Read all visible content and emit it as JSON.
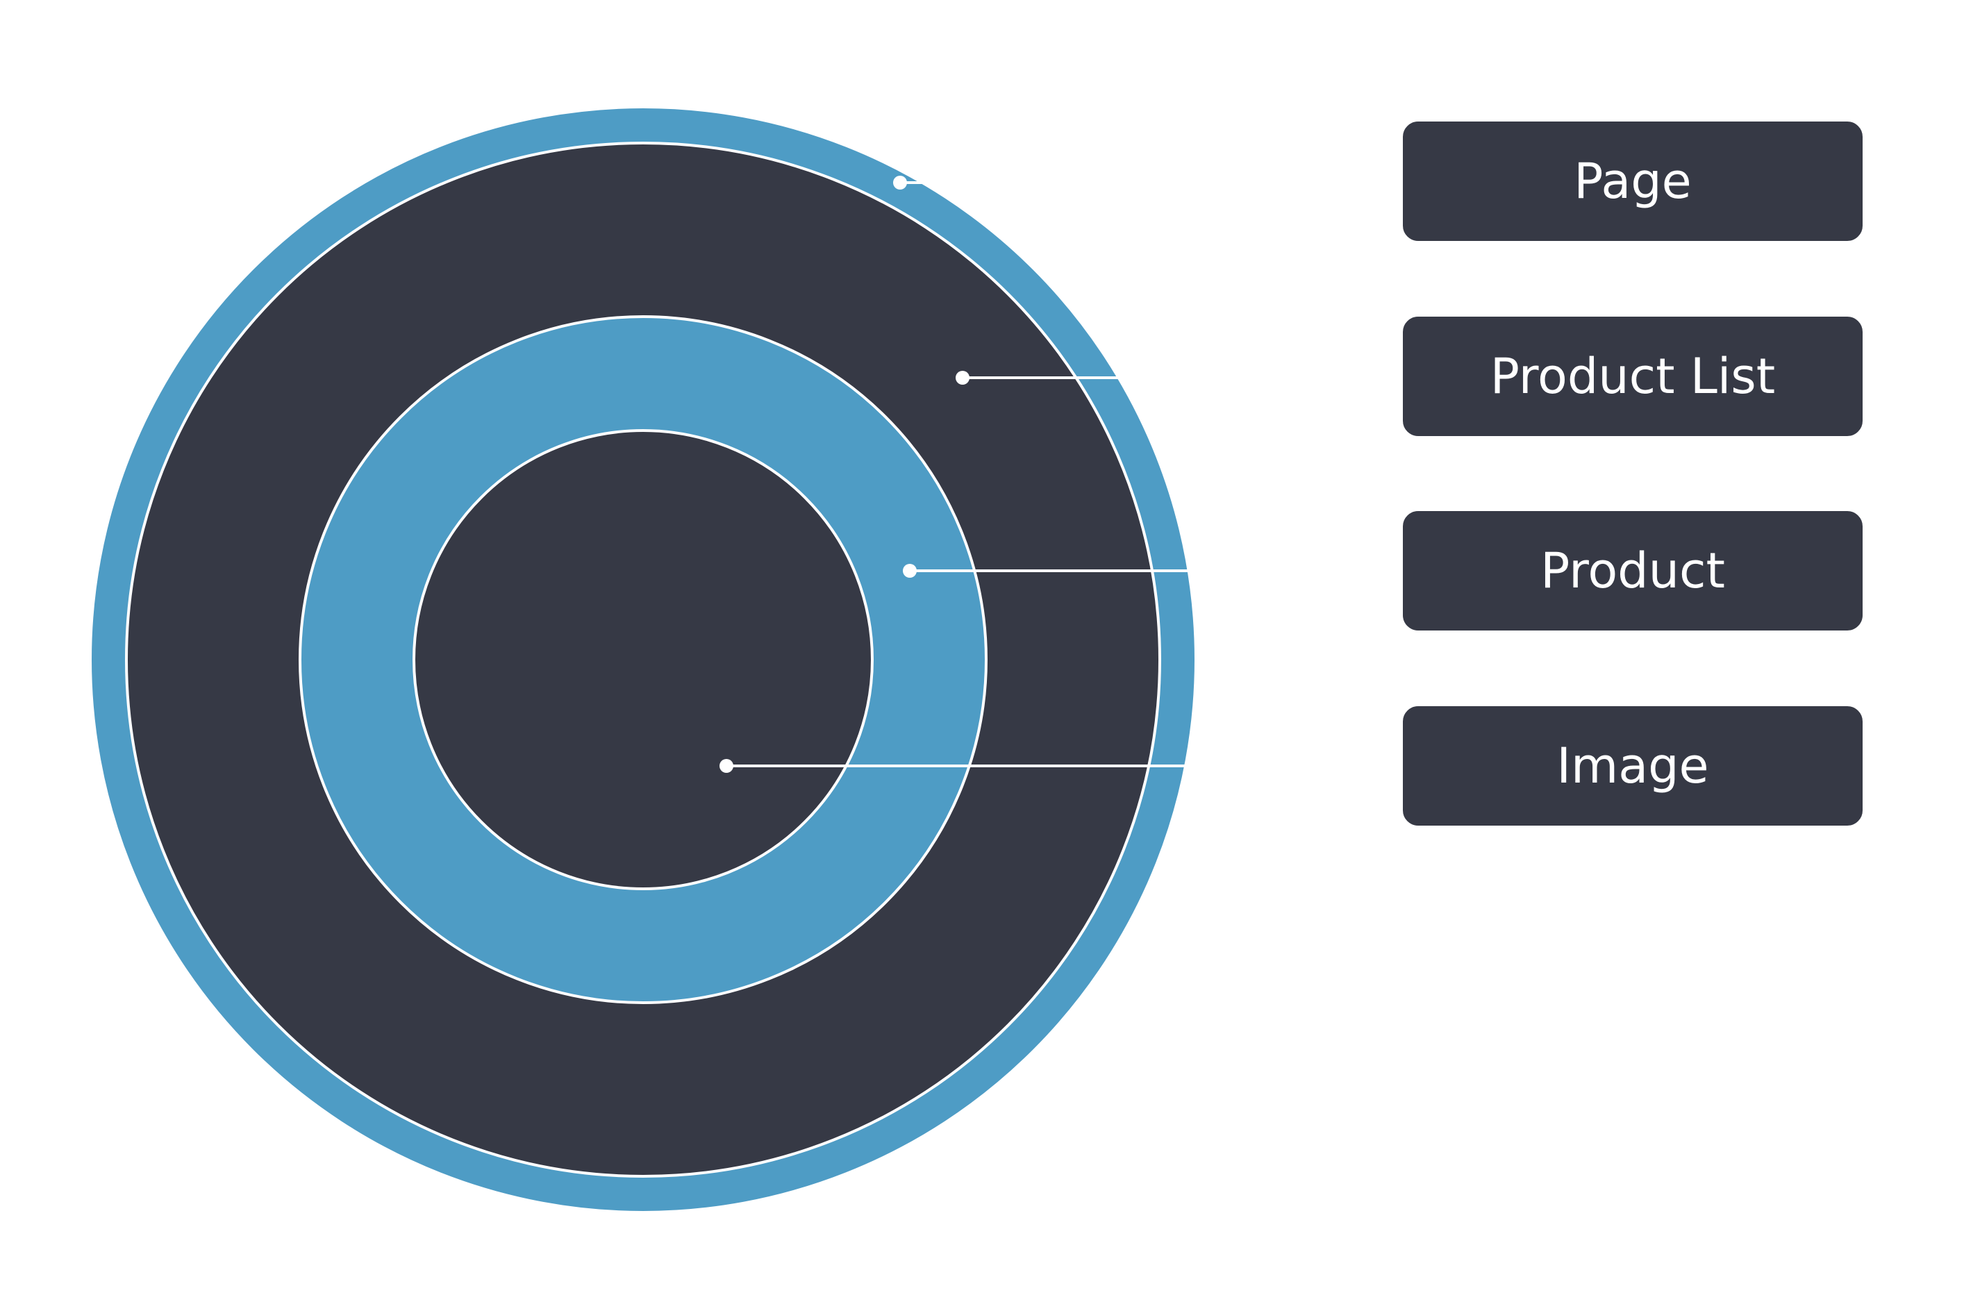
{
  "colors": {
    "ring_blue": "#4e9cc5",
    "ring_dark": "#363945",
    "outline": "#ffffff",
    "background": "#ffffff"
  },
  "layers": [
    {
      "id": "page",
      "label": "Page"
    },
    {
      "id": "product-list",
      "label": "Product List"
    },
    {
      "id": "product",
      "label": "Product"
    },
    {
      "id": "image",
      "label": "Image"
    }
  ]
}
